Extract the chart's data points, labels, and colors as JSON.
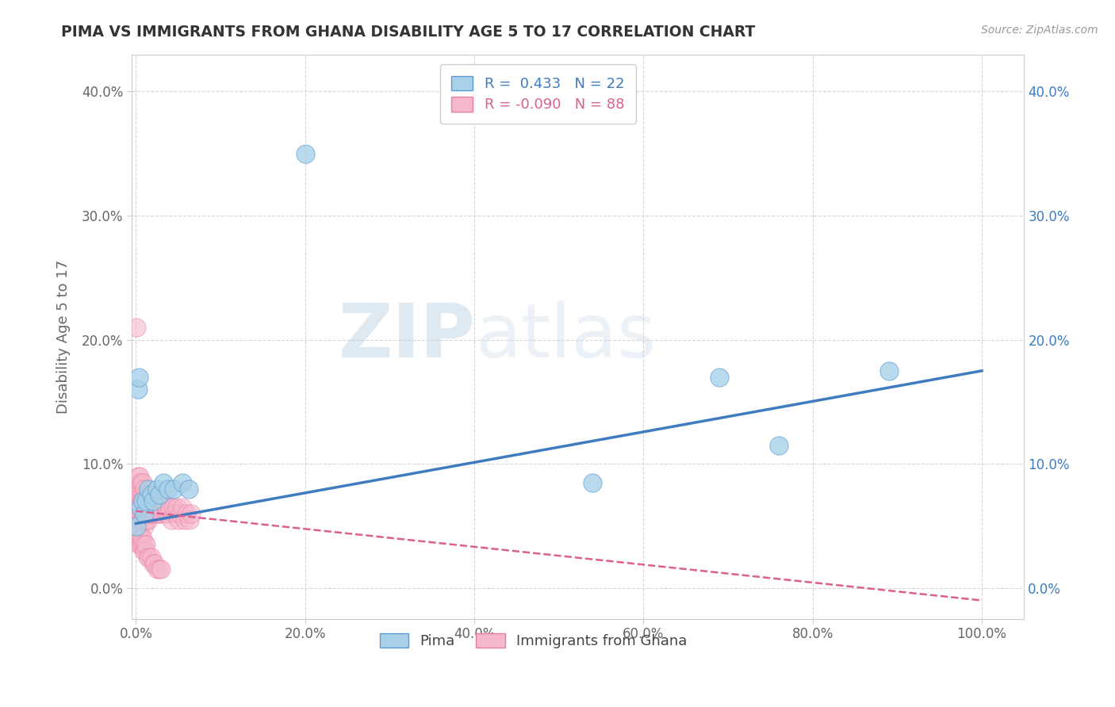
{
  "title": "PIMA VS IMMIGRANTS FROM GHANA DISABILITY AGE 5 TO 17 CORRELATION CHART",
  "source_text": "Source: ZipAtlas.com",
  "ylabel": "Disability Age 5 to 17",
  "r_pima": 0.433,
  "n_pima": 22,
  "r_ghana": -0.09,
  "n_ghana": 88,
  "pima_color": "#a8d0e8",
  "pima_edge_color": "#5b9bd5",
  "pima_line_color": "#3e7bbf",
  "ghana_color": "#f5b8cb",
  "ghana_edge_color": "#e87ba0",
  "ghana_line_color": "#d96090",
  "watermark_zip": "ZIP",
  "watermark_atlas": "atlas",
  "xlim": [
    -0.005,
    1.05
  ],
  "ylim": [
    -0.025,
    0.43
  ],
  "pima_x": [
    0.001,
    0.002,
    0.003,
    0.005,
    0.008,
    0.01,
    0.012,
    0.015,
    0.018,
    0.02,
    0.025,
    0.028,
    0.032,
    0.038,
    0.045,
    0.055,
    0.062,
    0.2,
    0.54,
    0.69,
    0.76,
    0.89
  ],
  "pima_y": [
    0.05,
    0.16,
    0.17,
    0.065,
    0.07,
    0.06,
    0.07,
    0.08,
    0.075,
    0.07,
    0.08,
    0.075,
    0.085,
    0.08,
    0.08,
    0.085,
    0.08,
    0.35,
    0.085,
    0.17,
    0.115,
    0.175
  ],
  "ghana_x": [
    0.001,
    0.001,
    0.002,
    0.002,
    0.002,
    0.003,
    0.003,
    0.003,
    0.004,
    0.004,
    0.004,
    0.005,
    0.005,
    0.005,
    0.006,
    0.006,
    0.006,
    0.007,
    0.007,
    0.008,
    0.008,
    0.008,
    0.009,
    0.009,
    0.01,
    0.01,
    0.01,
    0.011,
    0.011,
    0.012,
    0.012,
    0.013,
    0.013,
    0.014,
    0.015,
    0.015,
    0.016,
    0.016,
    0.017,
    0.018,
    0.018,
    0.019,
    0.02,
    0.021,
    0.022,
    0.023,
    0.025,
    0.026,
    0.027,
    0.028,
    0.03,
    0.031,
    0.033,
    0.035,
    0.036,
    0.038,
    0.04,
    0.042,
    0.044,
    0.046,
    0.048,
    0.05,
    0.052,
    0.055,
    0.058,
    0.06,
    0.063,
    0.065,
    0.001,
    0.002,
    0.003,
    0.004,
    0.005,
    0.006,
    0.007,
    0.008,
    0.009,
    0.01,
    0.011,
    0.012,
    0.014,
    0.016,
    0.018,
    0.02,
    0.022,
    0.025,
    0.028,
    0.03
  ],
  "ghana_y": [
    0.06,
    0.075,
    0.06,
    0.075,
    0.09,
    0.055,
    0.07,
    0.085,
    0.06,
    0.075,
    0.09,
    0.05,
    0.065,
    0.08,
    0.055,
    0.07,
    0.085,
    0.06,
    0.075,
    0.055,
    0.07,
    0.085,
    0.06,
    0.075,
    0.05,
    0.065,
    0.08,
    0.055,
    0.07,
    0.06,
    0.075,
    0.055,
    0.07,
    0.065,
    0.055,
    0.07,
    0.06,
    0.075,
    0.065,
    0.06,
    0.075,
    0.065,
    0.06,
    0.07,
    0.06,
    0.065,
    0.07,
    0.06,
    0.065,
    0.06,
    0.065,
    0.06,
    0.07,
    0.06,
    0.065,
    0.06,
    0.065,
    0.055,
    0.065,
    0.06,
    0.065,
    0.055,
    0.06,
    0.065,
    0.055,
    0.06,
    0.055,
    0.06,
    0.21,
    0.04,
    0.035,
    0.04,
    0.035,
    0.04,
    0.035,
    0.04,
    0.03,
    0.035,
    0.03,
    0.035,
    0.025,
    0.025,
    0.025,
    0.02,
    0.02,
    0.015,
    0.015,
    0.015
  ],
  "pima_line_x0": 0.0,
  "pima_line_x1": 1.0,
  "pima_line_y0": 0.052,
  "pima_line_y1": 0.175,
  "ghana_line_x0": 0.0,
  "ghana_line_x1": 1.0,
  "ghana_line_y0": 0.062,
  "ghana_line_y1": -0.01,
  "background_color": "#ffffff",
  "grid_color": "#cccccc",
  "title_color": "#333333",
  "axis_label_color": "#666666",
  "tick_label_color": "#666666",
  "xticks": [
    0.0,
    0.2,
    0.4,
    0.6,
    0.8,
    1.0
  ],
  "yticks": [
    0.0,
    0.1,
    0.2,
    0.3,
    0.4
  ],
  "x_tick_labels": [
    "0.0%",
    "20.0%",
    "40.0%",
    "60.0%",
    "80.0%",
    "100.0%"
  ],
  "y_tick_labels": [
    "0.0%",
    "10.0%",
    "20.0%",
    "30.0%",
    "40.0%"
  ]
}
